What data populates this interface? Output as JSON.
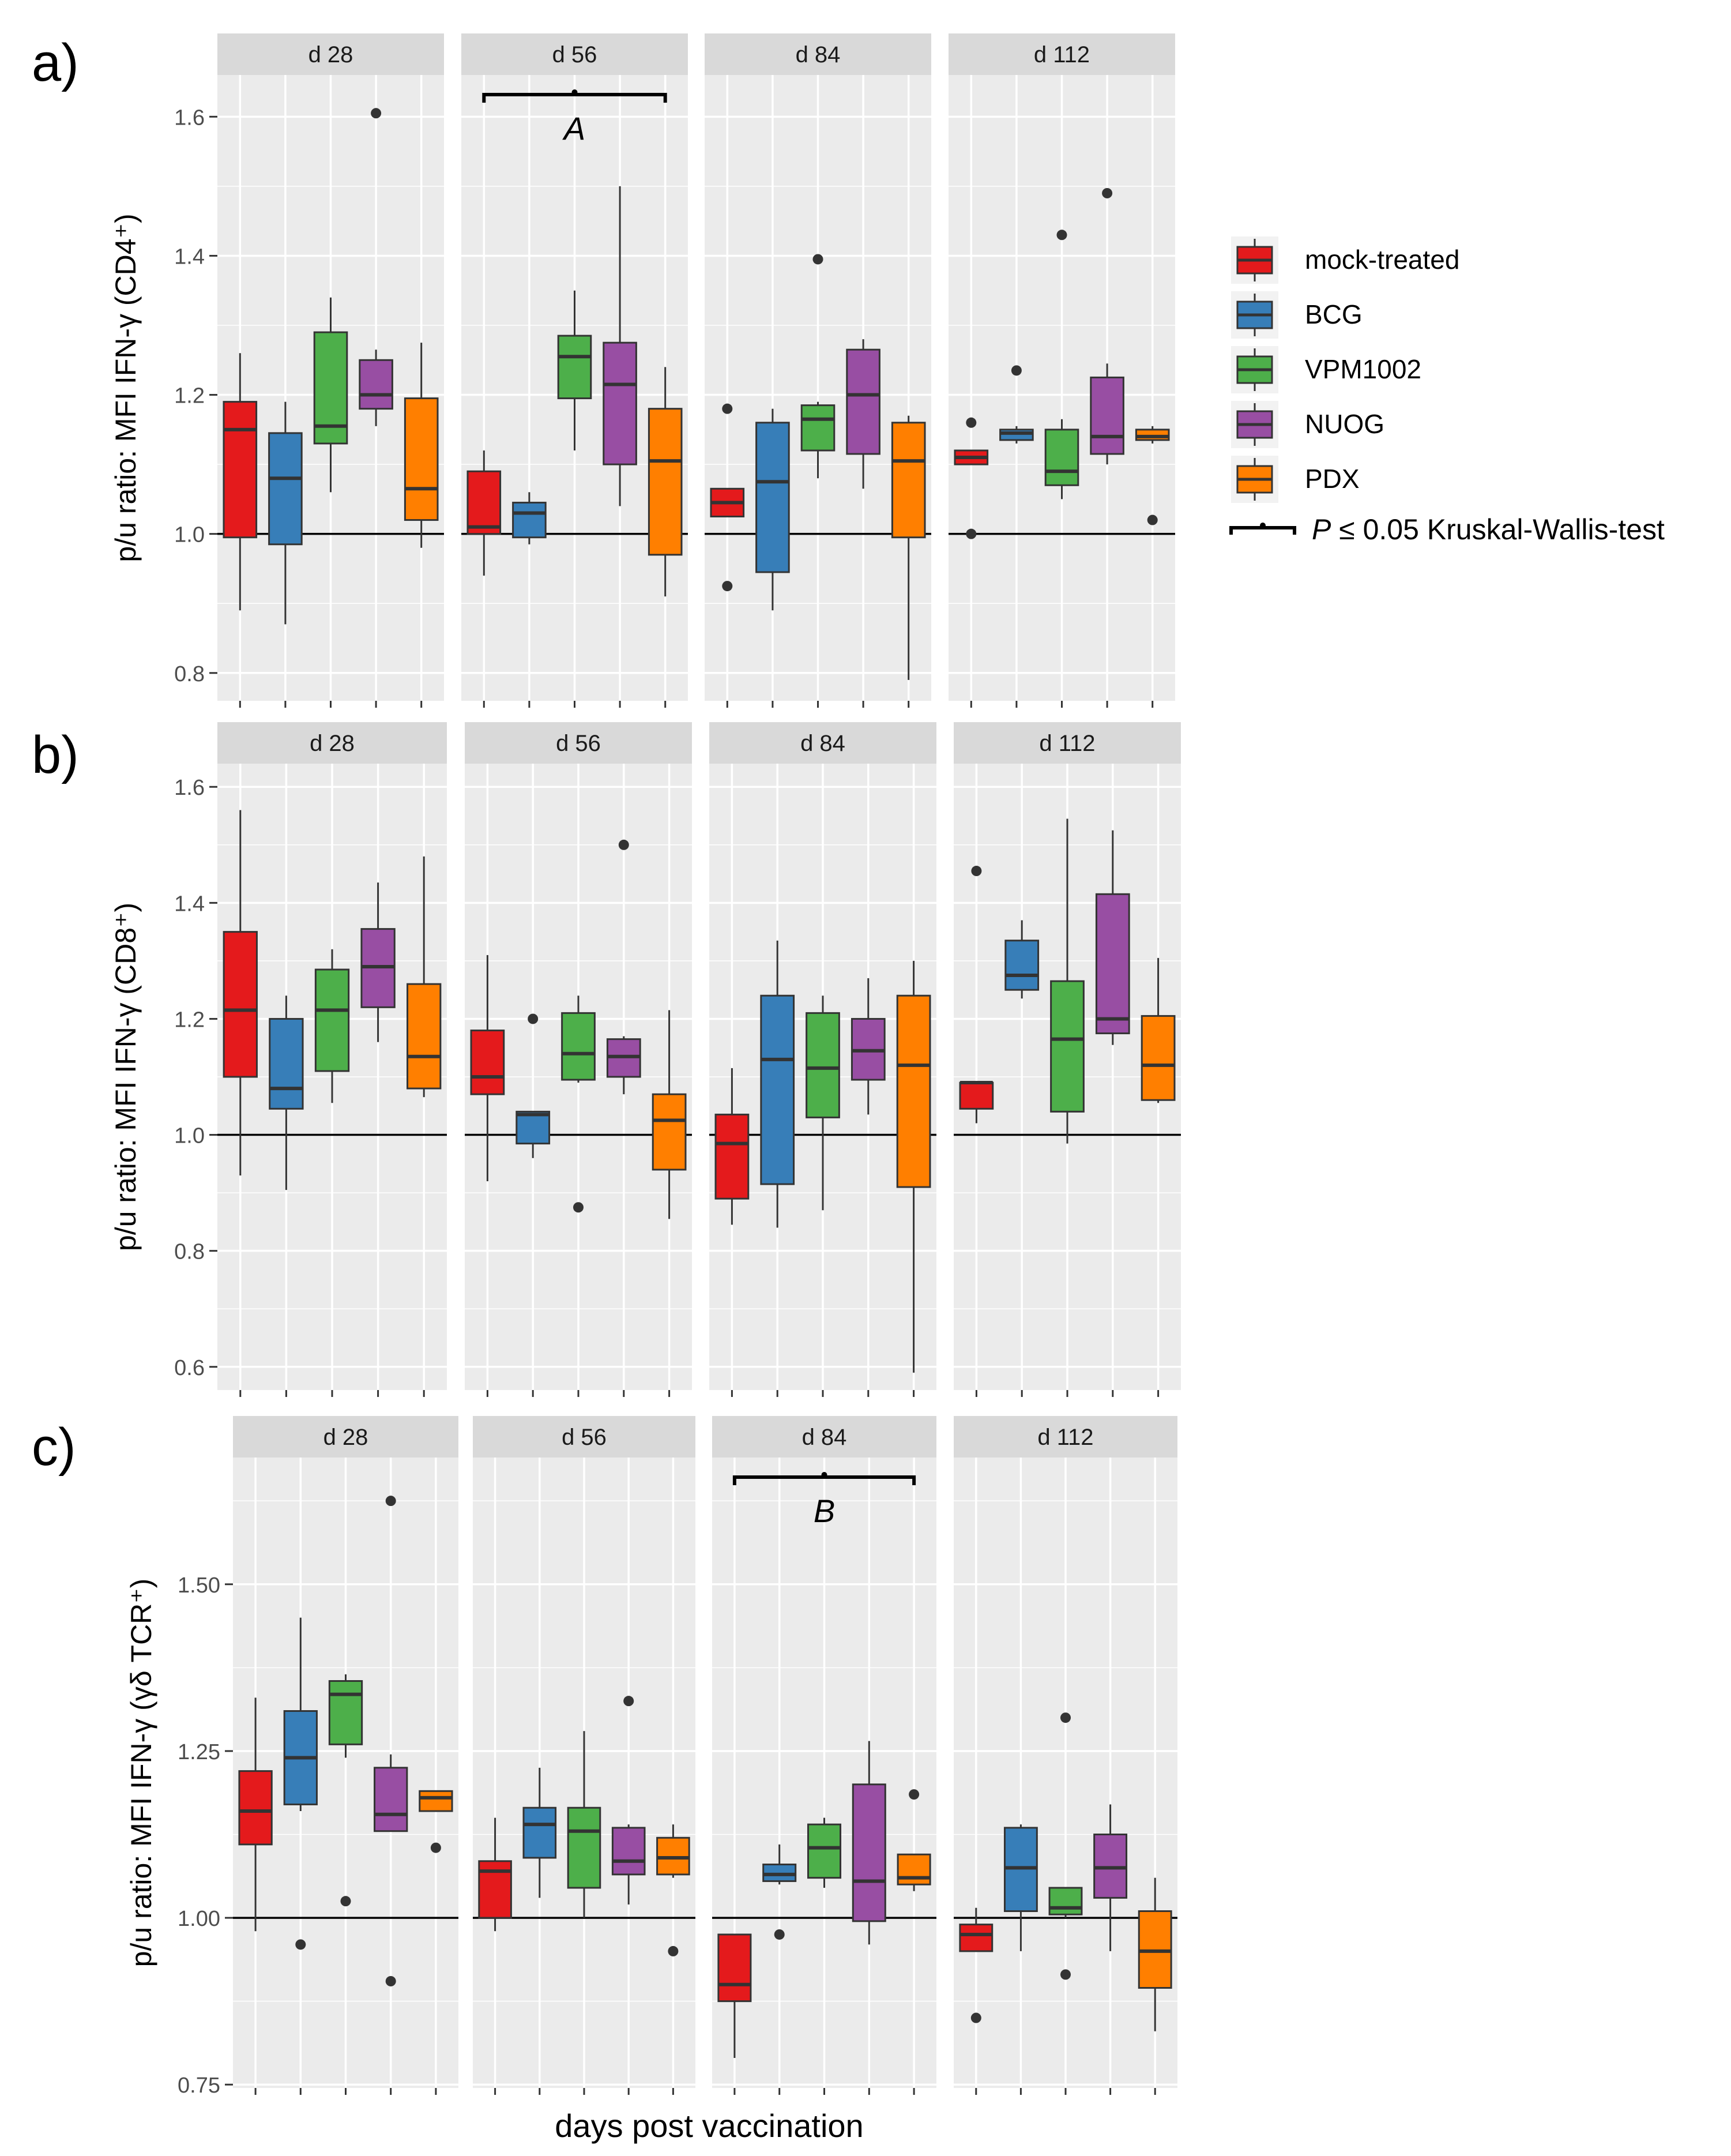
{
  "figure": {
    "x_axis_title": "days post vaccination",
    "legend": {
      "entries": [
        {
          "label": "mock-treated",
          "color": "#e41a1c"
        },
        {
          "label": "BCG",
          "color": "#377eb8"
        },
        {
          "label": "VPM1002",
          "color": "#4daf4a"
        },
        {
          "label": "NUOG",
          "color": "#984ea3"
        },
        {
          "label": "PDX",
          "color": "#ff7f00"
        }
      ],
      "significance_label": "P ≤ 0.05  Kruskal-Wallis-test",
      "significance_p": "P",
      "significance_rest": " ≤ 0.05  Kruskal-Wallis-test"
    }
  },
  "chart_data": [
    {
      "type": "boxplot",
      "panel_label": "a)",
      "ylabel": "p/u ratio: MFI IFN-γ (CD4⁺)",
      "ylim": [
        0.76,
        1.66
      ],
      "yticks": [
        0.8,
        1.0,
        1.2,
        1.4,
        1.6
      ],
      "tick_labels": [
        "0.8",
        "1.0",
        "1.2",
        "1.4",
        "1.6"
      ],
      "reference_line": 1.0,
      "facets": [
        {
          "title": "d 28",
          "groups": [
            {
              "group": "mock-treated",
              "lower": 0.89,
              "q1": 0.995,
              "median": 1.15,
              "q3": 1.19,
              "upper": 1.26,
              "outliers": []
            },
            {
              "group": "BCG",
              "lower": 0.87,
              "q1": 0.985,
              "median": 1.08,
              "q3": 1.145,
              "upper": 1.19,
              "outliers": []
            },
            {
              "group": "VPM1002",
              "lower": 1.06,
              "q1": 1.13,
              "median": 1.155,
              "q3": 1.29,
              "upper": 1.34,
              "outliers": []
            },
            {
              "group": "NUOG",
              "lower": 1.155,
              "q1": 1.18,
              "median": 1.2,
              "q3": 1.25,
              "upper": 1.265,
              "outliers": [
                1.605
              ]
            },
            {
              "group": "PDX",
              "lower": 0.98,
              "q1": 1.02,
              "median": 1.065,
              "q3": 1.195,
              "upper": 1.275,
              "outliers": []
            }
          ]
        },
        {
          "title": "d 56",
          "significance": {
            "label": "A"
          },
          "groups": [
            {
              "group": "mock-treated",
              "lower": 0.94,
              "q1": 1.0,
              "median": 1.01,
              "q3": 1.09,
              "upper": 1.12,
              "outliers": []
            },
            {
              "group": "BCG",
              "lower": 0.985,
              "q1": 0.995,
              "median": 1.03,
              "q3": 1.045,
              "upper": 1.06,
              "outliers": []
            },
            {
              "group": "VPM1002",
              "lower": 1.12,
              "q1": 1.195,
              "median": 1.255,
              "q3": 1.285,
              "upper": 1.35,
              "outliers": []
            },
            {
              "group": "NUOG",
              "lower": 1.04,
              "q1": 1.1,
              "median": 1.215,
              "q3": 1.275,
              "upper": 1.5,
              "outliers": []
            },
            {
              "group": "PDX",
              "lower": 0.91,
              "q1": 0.97,
              "median": 1.105,
              "q3": 1.18,
              "upper": 1.24,
              "outliers": []
            }
          ]
        },
        {
          "title": "d 84",
          "groups": [
            {
              "group": "mock-treated",
              "lower": 1.025,
              "q1": 1.025,
              "median": 1.045,
              "q3": 1.065,
              "upper": 1.065,
              "outliers": [
                0.925,
                1.18
              ]
            },
            {
              "group": "BCG",
              "lower": 0.89,
              "q1": 0.945,
              "median": 1.075,
              "q3": 1.16,
              "upper": 1.18,
              "outliers": []
            },
            {
              "group": "VPM1002",
              "lower": 1.08,
              "q1": 1.12,
              "median": 1.165,
              "q3": 1.185,
              "upper": 1.19,
              "outliers": [
                1.395
              ]
            },
            {
              "group": "NUOG",
              "lower": 1.065,
              "q1": 1.115,
              "median": 1.2,
              "q3": 1.265,
              "upper": 1.28,
              "outliers": []
            },
            {
              "group": "PDX",
              "lower": 0.79,
              "q1": 0.995,
              "median": 1.105,
              "q3": 1.16,
              "upper": 1.17,
              "outliers": []
            }
          ]
        },
        {
          "title": "d 112",
          "groups": [
            {
              "group": "mock-treated",
              "lower": 1.1,
              "q1": 1.1,
              "median": 1.11,
              "q3": 1.12,
              "upper": 1.12,
              "outliers": [
                1.0,
                1.16
              ]
            },
            {
              "group": "BCG",
              "lower": 1.13,
              "q1": 1.135,
              "median": 1.145,
              "q3": 1.15,
              "upper": 1.155,
              "outliers": [
                1.235
              ]
            },
            {
              "group": "VPM1002",
              "lower": 1.05,
              "q1": 1.07,
              "median": 1.09,
              "q3": 1.15,
              "upper": 1.165,
              "outliers": [
                1.43
              ]
            },
            {
              "group": "NUOG",
              "lower": 1.1,
              "q1": 1.115,
              "median": 1.14,
              "q3": 1.225,
              "upper": 1.245,
              "outliers": [
                1.49
              ]
            },
            {
              "group": "PDX",
              "lower": 1.13,
              "q1": 1.135,
              "median": 1.14,
              "q3": 1.15,
              "upper": 1.155,
              "outliers": [
                1.02
              ]
            }
          ]
        }
      ]
    },
    {
      "type": "boxplot",
      "panel_label": "b)",
      "ylabel": "p/u ratio: MFI IFN-γ (CD8⁺)",
      "ylim": [
        0.56,
        1.64
      ],
      "yticks": [
        0.6,
        0.8,
        1.0,
        1.2,
        1.4,
        1.6
      ],
      "tick_labels": [
        "0.6",
        "0.8",
        "1.0",
        "1.2",
        "1.4",
        "1.6"
      ],
      "reference_line": 1.0,
      "facets": [
        {
          "title": "d 28",
          "groups": [
            {
              "group": "mock-treated",
              "lower": 0.93,
              "q1": 1.1,
              "median": 1.215,
              "q3": 1.35,
              "upper": 1.56,
              "outliers": []
            },
            {
              "group": "BCG",
              "lower": 0.905,
              "q1": 1.045,
              "median": 1.08,
              "q3": 1.2,
              "upper": 1.24,
              "outliers": []
            },
            {
              "group": "VPM1002",
              "lower": 1.055,
              "q1": 1.11,
              "median": 1.215,
              "q3": 1.285,
              "upper": 1.32,
              "outliers": []
            },
            {
              "group": "NUOG",
              "lower": 1.16,
              "q1": 1.22,
              "median": 1.29,
              "q3": 1.355,
              "upper": 1.435,
              "outliers": []
            },
            {
              "group": "PDX",
              "lower": 1.065,
              "q1": 1.08,
              "median": 1.135,
              "q3": 1.26,
              "upper": 1.48,
              "outliers": []
            }
          ]
        },
        {
          "title": "d 56",
          "groups": [
            {
              "group": "mock-treated",
              "lower": 0.92,
              "q1": 1.07,
              "median": 1.1,
              "q3": 1.18,
              "upper": 1.31,
              "outliers": []
            },
            {
              "group": "BCG",
              "lower": 0.96,
              "q1": 0.985,
              "median": 1.035,
              "q3": 1.04,
              "upper": 1.04,
              "outliers": [
                1.2
              ]
            },
            {
              "group": "VPM1002",
              "lower": 1.09,
              "q1": 1.095,
              "median": 1.14,
              "q3": 1.21,
              "upper": 1.24,
              "outliers": [
                0.875
              ]
            },
            {
              "group": "NUOG",
              "lower": 1.07,
              "q1": 1.1,
              "median": 1.135,
              "q3": 1.165,
              "upper": 1.17,
              "outliers": [
                1.5
              ]
            },
            {
              "group": "PDX",
              "lower": 0.855,
              "q1": 0.94,
              "median": 1.025,
              "q3": 1.07,
              "upper": 1.215,
              "outliers": []
            }
          ]
        },
        {
          "title": "d 84",
          "groups": [
            {
              "group": "mock-treated",
              "lower": 0.845,
              "q1": 0.89,
              "median": 0.985,
              "q3": 1.035,
              "upper": 1.115,
              "outliers": []
            },
            {
              "group": "BCG",
              "lower": 0.84,
              "q1": 0.915,
              "median": 1.13,
              "q3": 1.24,
              "upper": 1.335,
              "outliers": []
            },
            {
              "group": "VPM1002",
              "lower": 0.87,
              "q1": 1.03,
              "median": 1.115,
              "q3": 1.21,
              "upper": 1.24,
              "outliers": []
            },
            {
              "group": "NUOG",
              "lower": 1.035,
              "q1": 1.095,
              "median": 1.145,
              "q3": 1.2,
              "upper": 1.27,
              "outliers": []
            },
            {
              "group": "PDX",
              "lower": 0.59,
              "q1": 0.91,
              "median": 1.12,
              "q3": 1.24,
              "upper": 1.3,
              "outliers": []
            }
          ]
        },
        {
          "title": "d 112",
          "groups": [
            {
              "group": "mock-treated",
              "lower": 1.02,
              "q1": 1.045,
              "median": 1.09,
              "q3": 1.09,
              "upper": 1.09,
              "outliers": [
                1.455
              ]
            },
            {
              "group": "BCG",
              "lower": 1.235,
              "q1": 1.25,
              "median": 1.275,
              "q3": 1.335,
              "upper": 1.37,
              "outliers": []
            },
            {
              "group": "VPM1002",
              "lower": 0.985,
              "q1": 1.04,
              "median": 1.165,
              "q3": 1.265,
              "upper": 1.545,
              "outliers": []
            },
            {
              "group": "NUOG",
              "lower": 1.155,
              "q1": 1.175,
              "median": 1.2,
              "q3": 1.415,
              "upper": 1.525,
              "outliers": []
            },
            {
              "group": "PDX",
              "lower": 1.055,
              "q1": 1.06,
              "median": 1.12,
              "q3": 1.205,
              "upper": 1.305,
              "outliers": []
            }
          ]
        }
      ]
    },
    {
      "type": "boxplot",
      "panel_label": "c)",
      "ylabel": "p/u ratio: MFI IFN-γ (γδ TCR⁺)",
      "ylim": [
        0.745,
        1.69
      ],
      "yticks": [
        0.75,
        1.0,
        1.25,
        1.5
      ],
      "tick_labels": [
        "0.75",
        "1.00",
        "1.25",
        "1.50"
      ],
      "reference_line": 1.0,
      "facets": [
        {
          "title": "d 28",
          "groups": [
            {
              "group": "mock-treated",
              "lower": 0.98,
              "q1": 1.11,
              "median": 1.16,
              "q3": 1.22,
              "upper": 1.33,
              "outliers": []
            },
            {
              "group": "BCG",
              "lower": 1.16,
              "q1": 1.17,
              "median": 1.24,
              "q3": 1.31,
              "upper": 1.45,
              "outliers": [
                0.96
              ]
            },
            {
              "group": "VPM1002",
              "lower": 1.24,
              "q1": 1.26,
              "median": 1.335,
              "q3": 1.355,
              "upper": 1.365,
              "outliers": [
                1.025
              ]
            },
            {
              "group": "NUOG",
              "lower": 1.13,
              "q1": 1.13,
              "median": 1.155,
              "q3": 1.225,
              "upper": 1.245,
              "outliers": [
                1.625,
                0.905
              ]
            },
            {
              "group": "PDX",
              "lower": 1.16,
              "q1": 1.16,
              "median": 1.18,
              "q3": 1.19,
              "upper": 1.19,
              "outliers": [
                1.105
              ]
            }
          ]
        },
        {
          "title": "d 56",
          "groups": [
            {
              "group": "mock-treated",
              "lower": 0.98,
              "q1": 1.0,
              "median": 1.07,
              "q3": 1.085,
              "upper": 1.15,
              "outliers": []
            },
            {
              "group": "BCG",
              "lower": 1.03,
              "q1": 1.09,
              "median": 1.14,
              "q3": 1.165,
              "upper": 1.225,
              "outliers": []
            },
            {
              "group": "VPM1002",
              "lower": 1.0,
              "q1": 1.045,
              "median": 1.13,
              "q3": 1.165,
              "upper": 1.28,
              "outliers": []
            },
            {
              "group": "NUOG",
              "lower": 1.02,
              "q1": 1.065,
              "median": 1.085,
              "q3": 1.135,
              "upper": 1.14,
              "outliers": [
                1.325
              ]
            },
            {
              "group": "PDX",
              "lower": 1.06,
              "q1": 1.065,
              "median": 1.09,
              "q3": 1.12,
              "upper": 1.14,
              "outliers": [
                0.95
              ]
            }
          ]
        },
        {
          "title": "d 84",
          "significance": {
            "label": "B"
          },
          "groups": [
            {
              "group": "mock-treated",
              "lower": 0.79,
              "q1": 0.875,
              "median": 0.9,
              "q3": 0.975,
              "upper": 0.975,
              "outliers": []
            },
            {
              "group": "BCG",
              "lower": 1.05,
              "q1": 1.055,
              "median": 1.065,
              "q3": 1.08,
              "upper": 1.11,
              "outliers": [
                0.975
              ]
            },
            {
              "group": "VPM1002",
              "lower": 1.045,
              "q1": 1.06,
              "median": 1.105,
              "q3": 1.14,
              "upper": 1.15,
              "outliers": []
            },
            {
              "group": "NUOG",
              "lower": 0.96,
              "q1": 0.995,
              "median": 1.055,
              "q3": 1.2,
              "upper": 1.265,
              "outliers": []
            },
            {
              "group": "PDX",
              "lower": 1.04,
              "q1": 1.05,
              "median": 1.06,
              "q3": 1.095,
              "upper": 1.095,
              "outliers": [
                1.185
              ]
            }
          ]
        },
        {
          "title": "d 112",
          "groups": [
            {
              "group": "mock-treated",
              "lower": 0.95,
              "q1": 0.95,
              "median": 0.975,
              "q3": 0.99,
              "upper": 1.015,
              "outliers": [
                0.85
              ]
            },
            {
              "group": "BCG",
              "lower": 0.95,
              "q1": 1.01,
              "median": 1.075,
              "q3": 1.135,
              "upper": 1.14,
              "outliers": []
            },
            {
              "group": "VPM1002",
              "lower": 1.0,
              "q1": 1.005,
              "median": 1.015,
              "q3": 1.045,
              "upper": 1.045,
              "outliers": [
                1.3,
                0.915
              ]
            },
            {
              "group": "NUOG",
              "lower": 0.95,
              "q1": 1.03,
              "median": 1.075,
              "q3": 1.125,
              "upper": 1.17,
              "outliers": []
            },
            {
              "group": "PDX",
              "lower": 0.83,
              "q1": 0.895,
              "median": 0.95,
              "q3": 1.01,
              "upper": 1.06,
              "outliers": []
            }
          ]
        }
      ]
    }
  ]
}
